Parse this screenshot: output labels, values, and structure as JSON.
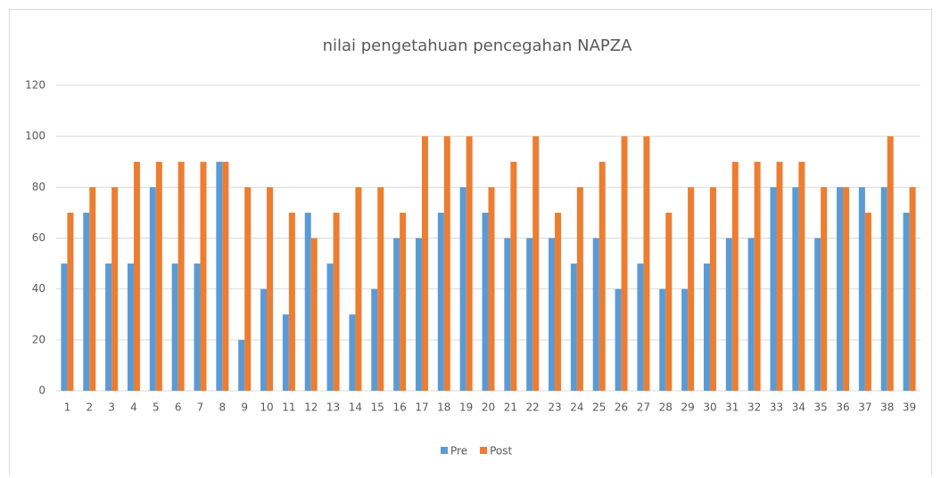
{
  "chart_data": {
    "type": "bar",
    "title": "nilai pengetahuan pencegahan NAPZA",
    "categories": [
      "1",
      "2",
      "3",
      "4",
      "5",
      "6",
      "7",
      "8",
      "9",
      "10",
      "11",
      "12",
      "13",
      "14",
      "15",
      "16",
      "17",
      "18",
      "19",
      "20",
      "21",
      "22",
      "23",
      "24",
      "25",
      "26",
      "27",
      "28",
      "29",
      "30",
      "31",
      "32",
      "33",
      "34",
      "35",
      "36",
      "37",
      "38",
      "39"
    ],
    "series": [
      {
        "name": "Pre",
        "color": "#5b9bd5",
        "values": [
          50,
          70,
          50,
          50,
          80,
          50,
          50,
          90,
          20,
          40,
          30,
          70,
          50,
          30,
          40,
          60,
          60,
          70,
          80,
          70,
          60,
          60,
          60,
          50,
          60,
          40,
          50,
          40,
          40,
          50,
          60,
          60,
          80,
          80,
          60,
          80,
          80,
          80,
          70
        ]
      },
      {
        "name": "Post",
        "color": "#ed7d31",
        "values": [
          70,
          80,
          80,
          90,
          90,
          90,
          90,
          90,
          80,
          80,
          70,
          60,
          70,
          80,
          80,
          70,
          100,
          100,
          100,
          80,
          90,
          100,
          70,
          80,
          90,
          100,
          100,
          70,
          80,
          80,
          90,
          90,
          90,
          90,
          80,
          80,
          70,
          100,
          80
        ]
      }
    ],
    "ylim": [
      0,
      120
    ],
    "yticks": [
      0,
      20,
      40,
      60,
      80,
      100,
      120
    ],
    "grid": true,
    "legend": "bottom"
  }
}
